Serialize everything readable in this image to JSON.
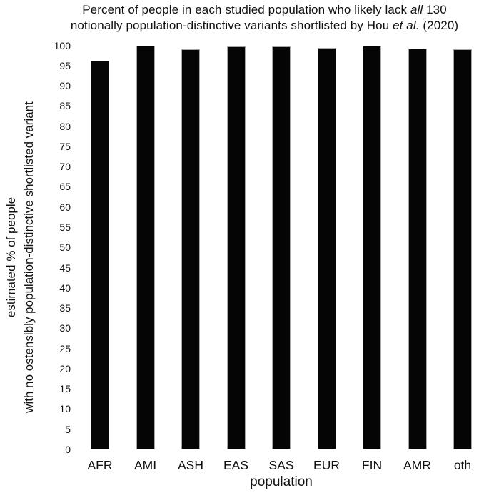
{
  "chart_data": {
    "type": "bar",
    "title_lines": [
      [
        {
          "text": "Percent of people in each studied population who likely lack ",
          "italic": false
        },
        {
          "text": "all",
          "italic": true
        },
        {
          "text": " 130",
          "italic": false
        }
      ],
      [
        {
          "text": "notionally population-distinctive variants shortlisted by Hou ",
          "italic": false
        },
        {
          "text": "et al.",
          "italic": true
        },
        {
          "text": " (2020)",
          "italic": false
        }
      ]
    ],
    "xlabel": "population",
    "ylabel_lines": [
      "estimated % of people",
      "with no ostensibly population-distinctive shortlisted variant"
    ],
    "categories": [
      "AFR",
      "AMI",
      "ASH",
      "EAS",
      "SAS",
      "EUR",
      "FIN",
      "AMR",
      "oth"
    ],
    "values": [
      96.2,
      100,
      99.1,
      99.7,
      99.8,
      99.4,
      100,
      99.2,
      99.0
    ],
    "ylim": [
      0,
      100
    ],
    "ytick_step": 5,
    "grid": false,
    "legend": false,
    "axis_lines": false,
    "bar_color": "#050505",
    "background_color": "#ffffff",
    "text_color": "#111111"
  }
}
